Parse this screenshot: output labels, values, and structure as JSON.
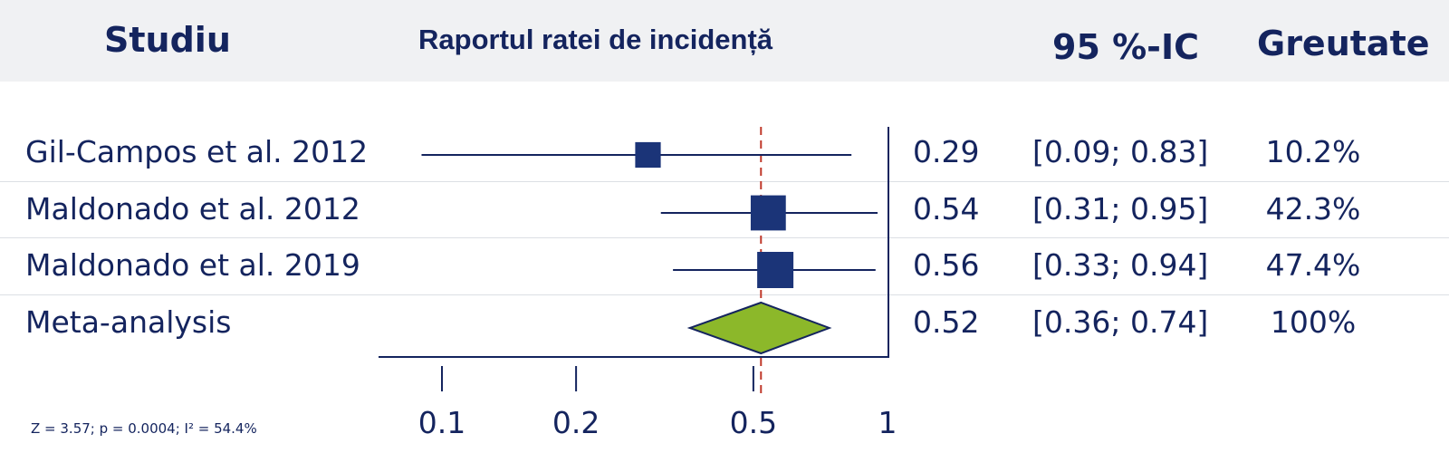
{
  "header": {
    "study": "Studiu",
    "ratio": "Raportul ratei de incidență",
    "ci": "95 %-IC",
    "weight": "Greutate"
  },
  "chart_data": {
    "type": "forest",
    "xscale": "log",
    "xlim": [
      0.07,
      1
    ],
    "xticks": [
      0.1,
      0.2,
      0.5,
      1
    ],
    "xtick_labels": [
      "0.1",
      "0.2",
      "0.5",
      "1"
    ],
    "reference_line": 0.52,
    "reference_color": "#c0392b",
    "marker_color": "#1b3478",
    "diamond_color": "#8cb82a",
    "rows": [
      {
        "study": "Gil-Campos et al. 2012",
        "estimate": 0.29,
        "est_label": "0.29",
        "lower": 0.09,
        "upper": 0.83,
        "ci_label": "[0.09; 0.83]",
        "weight": 10.2,
        "weight_label": "10.2%"
      },
      {
        "study": "Maldonado et al. 2012",
        "estimate": 0.54,
        "est_label": "0.54",
        "lower": 0.31,
        "upper": 0.95,
        "ci_label": "[0.31; 0.95]",
        "weight": 42.3,
        "weight_label": "42.3%"
      },
      {
        "study": "Maldonado et al. 2019",
        "estimate": 0.56,
        "est_label": "0.56",
        "lower": 0.33,
        "upper": 0.94,
        "ci_label": "[0.33; 0.94]",
        "weight": 47.4,
        "weight_label": "47.4%"
      }
    ],
    "summary": {
      "study": "Meta-analysis",
      "estimate": 0.52,
      "est_label": "0.52",
      "lower": 0.36,
      "upper": 0.74,
      "ci_label": "[0.36; 0.74]",
      "weight_label": "100%"
    },
    "footnote": "Z = 3.57; p = 0.0004; I² = 54.4%"
  }
}
